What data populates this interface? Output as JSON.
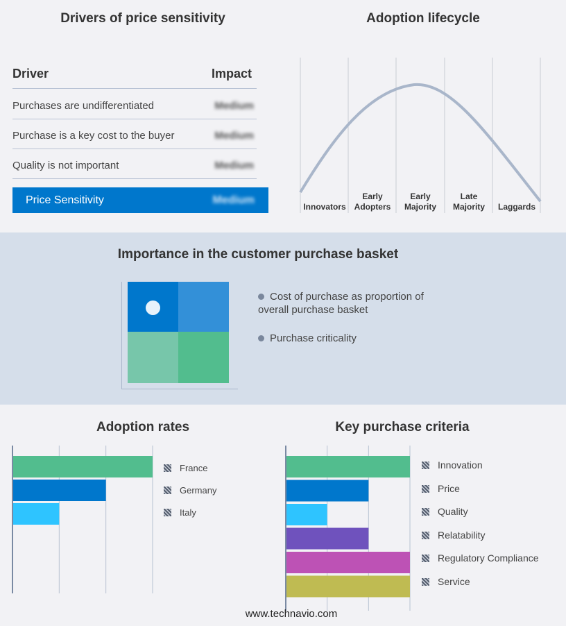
{
  "drivers": {
    "title": "Drivers of price sensitivity",
    "col_driver": "Driver",
    "col_impact": "Impact",
    "rows": [
      {
        "driver": "Purchases are undifferentiated",
        "impact": "Medium"
      },
      {
        "driver": "Purchase is a key cost to the buyer",
        "impact": "Medium"
      },
      {
        "driver": "Quality is not important",
        "impact": "Medium"
      }
    ],
    "summary": {
      "label": "Price Sensitivity",
      "impact": "Medium"
    },
    "accent": "#0077cc"
  },
  "lifecycle": {
    "title": "Adoption lifecycle",
    "stages": [
      "Innovators",
      "Early Adopters",
      "Early Majority",
      "Late Majority",
      "Laggards"
    ]
  },
  "basket": {
    "title": "Importance in the customer purchase basket",
    "legend": [
      "Cost of purchase as proportion of overall purchase basket",
      "Purchase criticality"
    ],
    "quadrant_colors": [
      "#0077cc",
      "#3390d8",
      "#77c6aa",
      "#52bd8e"
    ]
  },
  "chart_data": [
    {
      "type": "bar",
      "title": "Adoption rates",
      "orientation": "horizontal",
      "categories": [
        "France",
        "Germany",
        "Italy"
      ],
      "values": [
        3,
        2,
        1
      ],
      "xlim": [
        0,
        3
      ],
      "grid": true,
      "legend": "right",
      "colors": [
        "#52bd8e",
        "#0077cc",
        "#2ec4ff"
      ]
    },
    {
      "type": "bar",
      "title": "Key purchase criteria",
      "orientation": "horizontal",
      "categories": [
        "Innovation",
        "Price",
        "Quality",
        "Relatability",
        "Regulatory Compliance",
        "Service"
      ],
      "values": [
        3,
        2,
        1,
        2,
        3,
        3
      ],
      "xlim": [
        0,
        3
      ],
      "grid": true,
      "legend": "right",
      "colors": [
        "#52bd8e",
        "#0077cc",
        "#2ec4ff",
        "#6f52bd",
        "#bd52b5",
        "#bfbb52"
      ]
    }
  ],
  "footer": "www.technavio.com"
}
